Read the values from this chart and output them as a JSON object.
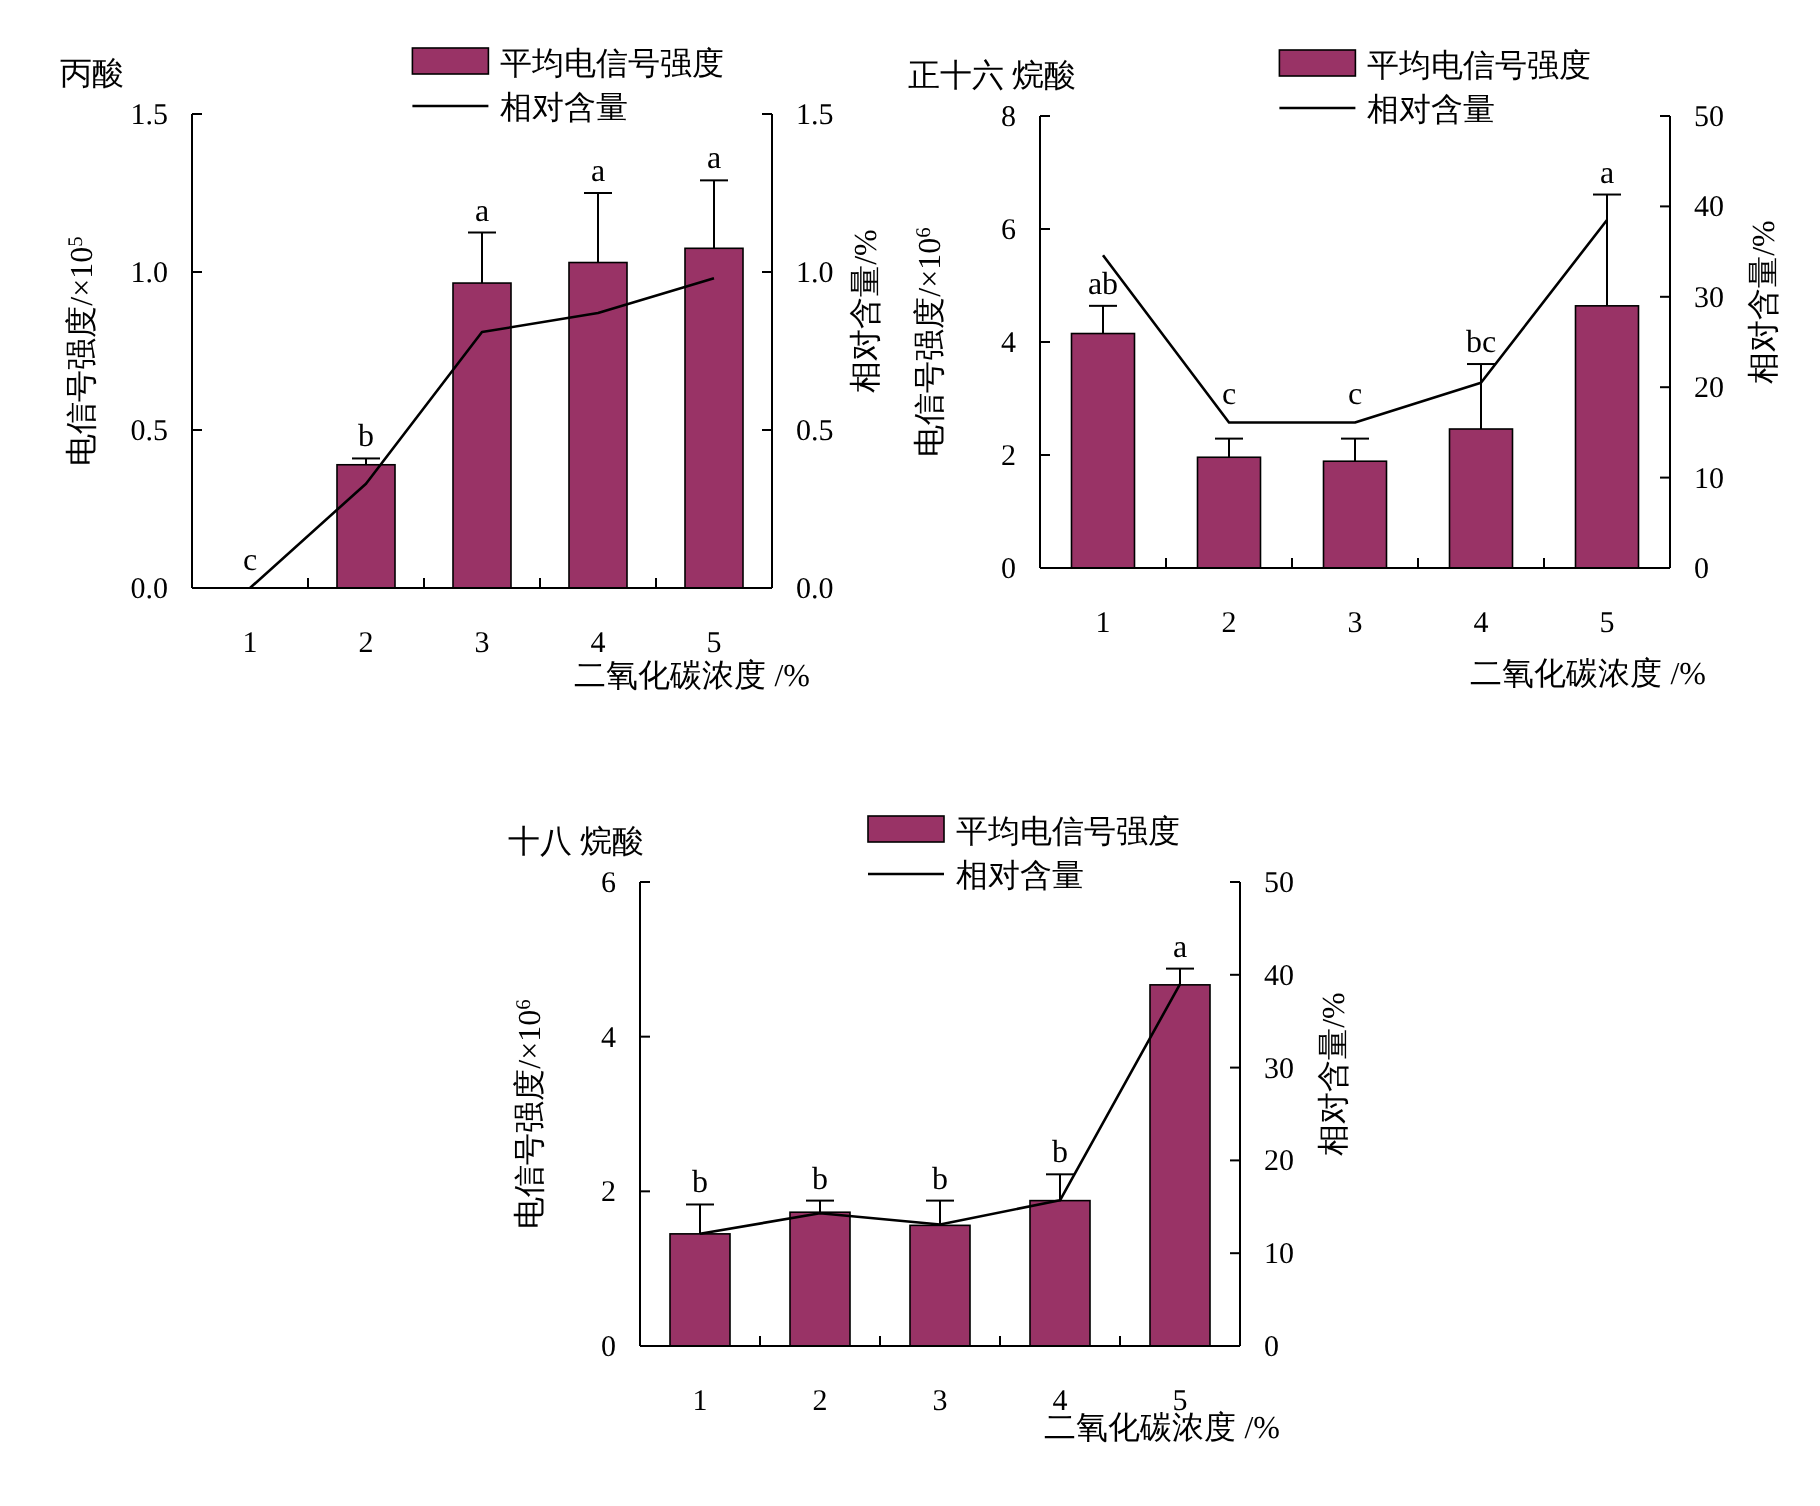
{
  "chart_data": [
    {
      "type": "bar",
      "title": "丙酸",
      "xlabel": "二氧化碳浓度 /%",
      "ylabel": "电信号强度/×10$^{5}$",
      "y2label": "相对含量/%",
      "legend": "top",
      "categories": [
        "1",
        "2",
        "3",
        "4",
        "5"
      ],
      "ylim": [
        0,
        1.5
      ],
      "yticks": [
        {
          "value": 0,
          "label": "0.0"
        },
        {
          "value": 0.5,
          "label": "0.5"
        },
        {
          "value": 1,
          "label": "1.0"
        },
        {
          "value": 1.5,
          "label": "1.5"
        }
      ],
      "y2lim": [
        0,
        1.5
      ],
      "y2ticks": [
        {
          "value": 0,
          "label": "0.0"
        },
        {
          "value": 0.5,
          "label": "0.5"
        },
        {
          "value": 1,
          "label": "1.0"
        },
        {
          "value": 1.5,
          "label": "1.5"
        }
      ],
      "series": [
        {
          "name": "平均电信号强度",
          "color": "#993366",
          "values": [
            0,
            0.39,
            0.965,
            1.03,
            1.075
          ],
          "errors": [
            null,
            [
              0.39,
              0.41
            ],
            [
              0.965,
              1.125
            ],
            [
              1.03,
              1.25
            ],
            [
              1.075,
              1.29
            ]
          ]
        },
        {
          "name": "相对含量",
          "type": "line",
          "axis": "y2",
          "color": "#000000",
          "values": [
            0,
            0.33,
            0.81,
            0.87,
            0.98
          ]
        }
      ],
      "annotations": [
        {
          "text": "c",
          "x": "1",
          "y": 0
        },
        {
          "text": "b",
          "x": "2",
          "y": 0.41
        },
        {
          "text": "a",
          "x": "3",
          "y": 1.125
        },
        {
          "text": "a",
          "x": "4",
          "y": 1.25
        },
        {
          "text": "a",
          "x": "5",
          "y": 1.29
        }
      ]
    },
    {
      "type": "bar",
      "title": "正十六 烷酸",
      "xlabel": "二氧化碳浓度 /%",
      "ylabel": "电信号强度/×10$^{6}$",
      "y2label": "相对含量/%",
      "legend": "top",
      "categories": [
        "1",
        "2",
        "3",
        "4",
        "5"
      ],
      "ylim": [
        0,
        8
      ],
      "yticks": [
        0,
        2,
        4,
        6,
        8
      ],
      "y2lim": [
        0,
        50
      ],
      "y2ticks": [
        0,
        10,
        20,
        30,
        40,
        50
      ],
      "series": [
        {
          "name": "平均电信号强度",
          "color": "#993366",
          "values": [
            4.15,
            1.96,
            1.89,
            2.46,
            4.64
          ],
          "errors": [
            [
              4.15,
              4.64
            ],
            [
              1.96,
              2.29
            ],
            [
              1.89,
              2.29
            ],
            [
              2.46,
              3.61
            ],
            [
              4.64,
              6.61
            ]
          ]
        },
        {
          "name": "相对含量",
          "type": "line",
          "axis": "y2",
          "color": "#000000",
          "values": [
            34.6,
            16.1,
            16.1,
            20.5,
            38.5
          ]
        }
      ],
      "annotations": [
        {
          "text": "ab",
          "x": "1",
          "y": 4.64
        },
        {
          "text": "c",
          "x": "2",
          "y": 2.29
        },
        {
          "text": "c",
          "x": "3",
          "y": 2.29
        },
        {
          "text": "bc",
          "x": "4",
          "y": 3.61
        },
        {
          "text": "a",
          "x": "5",
          "y": 6.61
        }
      ]
    },
    {
      "type": "bar",
      "title": "十八 烷酸",
      "xlabel": "二氧化碳浓度 /%",
      "ylabel": "电信号强度/×10$^{6}$",
      "y2label": "相对含量/%",
      "legend": "top",
      "categories": [
        "1",
        "2",
        "3",
        "4",
        "5"
      ],
      "ylim": [
        0,
        6
      ],
      "yticks": [
        0,
        2,
        4,
        6
      ],
      "y2lim": [
        0,
        50
      ],
      "y2ticks": [
        0,
        10,
        20,
        30,
        40,
        50
      ],
      "series": [
        {
          "name": "平均电信号强度",
          "color": "#993366",
          "values": [
            1.45,
            1.73,
            1.56,
            1.88,
            4.67
          ],
          "errors": [
            [
              1.45,
              1.83
            ],
            [
              1.73,
              1.88
            ],
            [
              1.56,
              1.88
            ],
            [
              1.88,
              2.22
            ],
            [
              4.67,
              4.88
            ]
          ]
        },
        {
          "name": "相对含量",
          "type": "line",
          "axis": "y2",
          "color": "#000000",
          "values": [
            12.1,
            14.3,
            13.1,
            15.7,
            39.0
          ]
        }
      ],
      "annotations": [
        {
          "text": "b",
          "x": "1",
          "y": 1.83
        },
        {
          "text": "b",
          "x": "2",
          "y": 1.88
        },
        {
          "text": "b",
          "x": "3",
          "y": 1.88
        },
        {
          "text": "b",
          "x": "4",
          "y": 2.22
        },
        {
          "text": "a",
          "x": "5",
          "y": 4.88
        }
      ]
    }
  ]
}
